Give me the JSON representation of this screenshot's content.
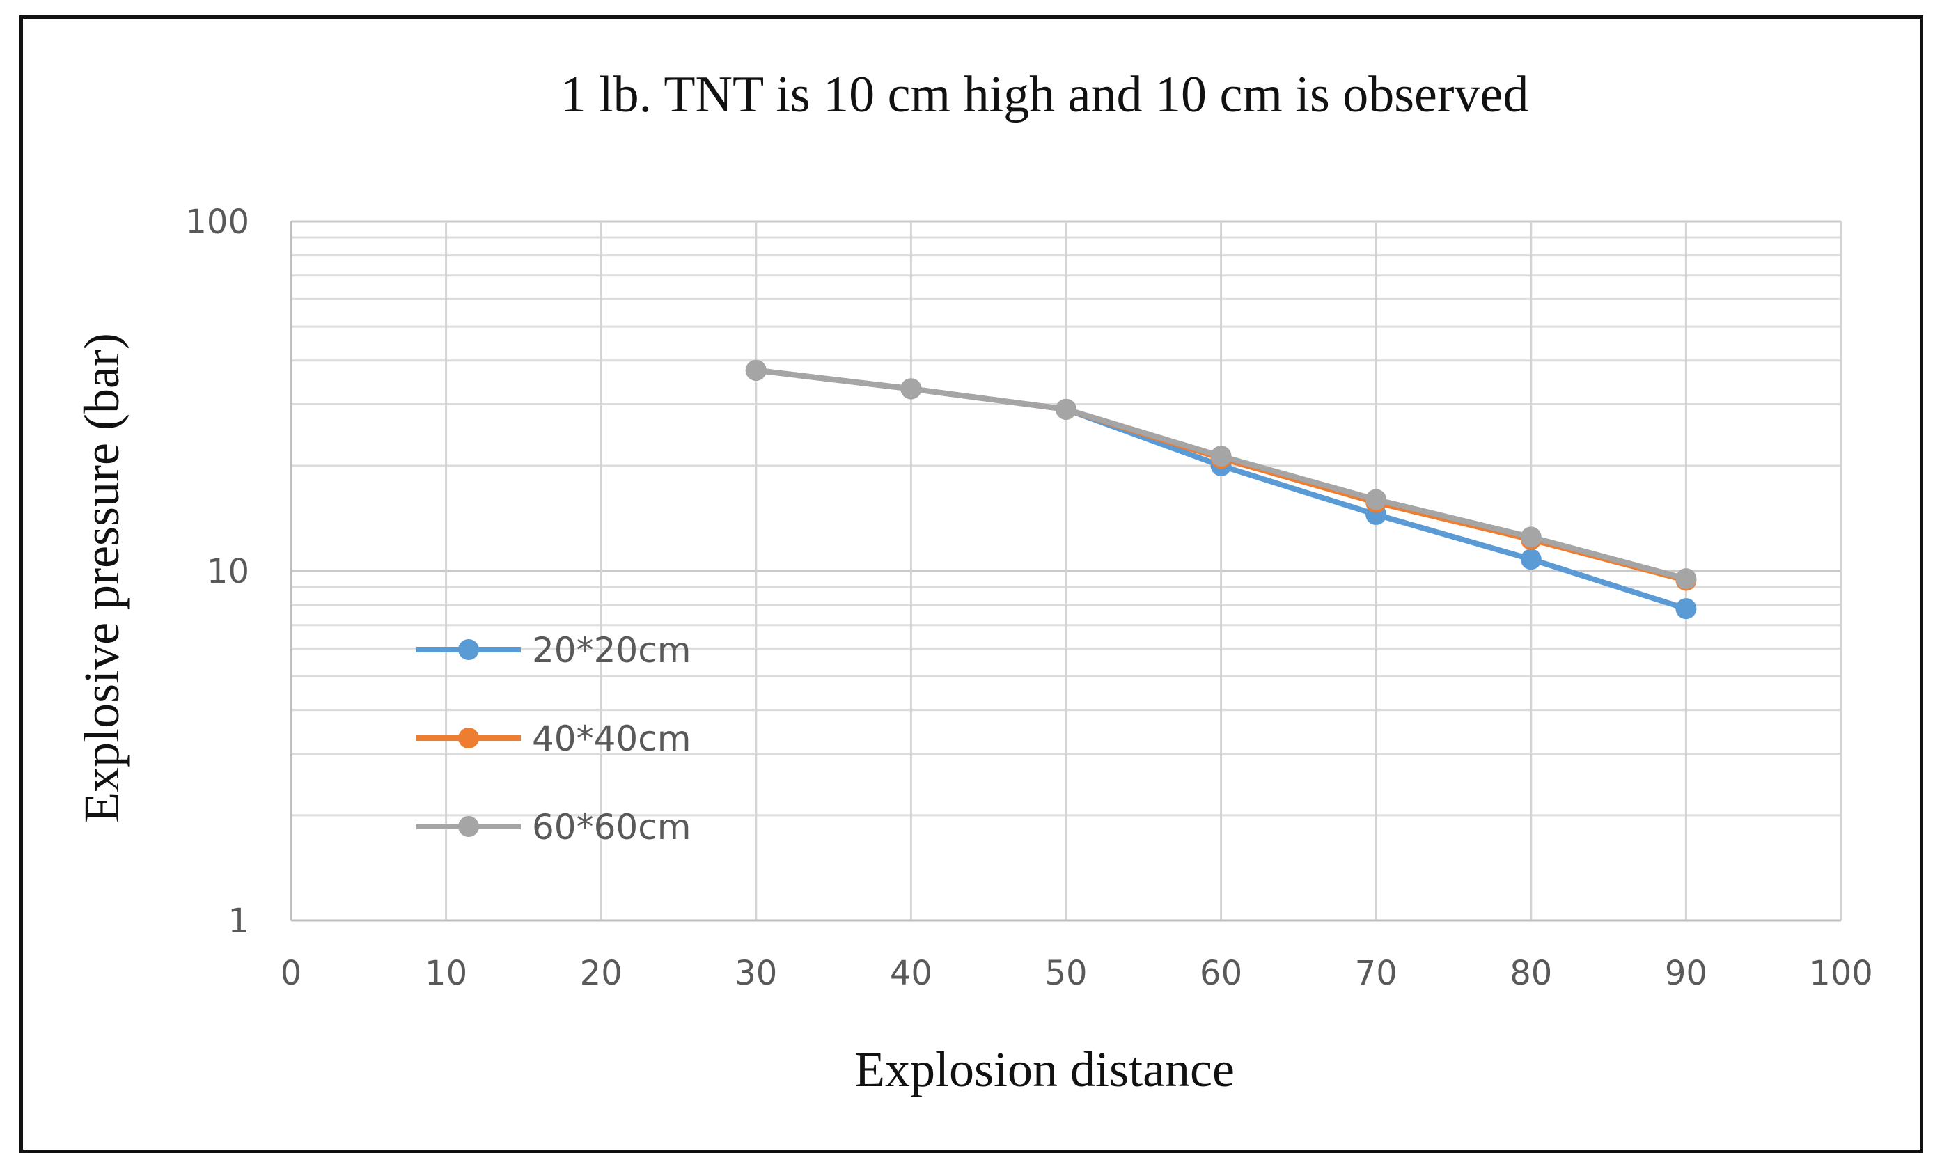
{
  "chart_data": {
    "type": "line",
    "title": "1 lb. TNT is 10 cm high and 10 cm is observed",
    "xlabel": "Explosion distance",
    "ylabel": "Explosive pressure (bar)",
    "xlim": [
      0,
      100
    ],
    "ylim": [
      1,
      100
    ],
    "yscale": "log",
    "grid": true,
    "x_ticks": [
      0,
      10,
      20,
      30,
      40,
      50,
      60,
      70,
      80,
      90,
      100
    ],
    "y_ticks": [
      1,
      10,
      100
    ],
    "legend_position": "left",
    "x": [
      30,
      40,
      50,
      60,
      70,
      80,
      90
    ],
    "series": [
      {
        "name": "20*20cm",
        "color": "#5b9bd5",
        "values": [
          37.5,
          33.2,
          29.0,
          20.0,
          14.5,
          10.8,
          7.8
        ]
      },
      {
        "name": "40*40cm",
        "color": "#ed7d31",
        "values": [
          37.5,
          33.2,
          29.0,
          21.0,
          15.7,
          12.3,
          9.4
        ]
      },
      {
        "name": "60*60cm",
        "color": "#a5a5a5",
        "values": [
          37.5,
          33.2,
          29.0,
          21.3,
          16.0,
          12.5,
          9.5
        ]
      }
    ]
  }
}
